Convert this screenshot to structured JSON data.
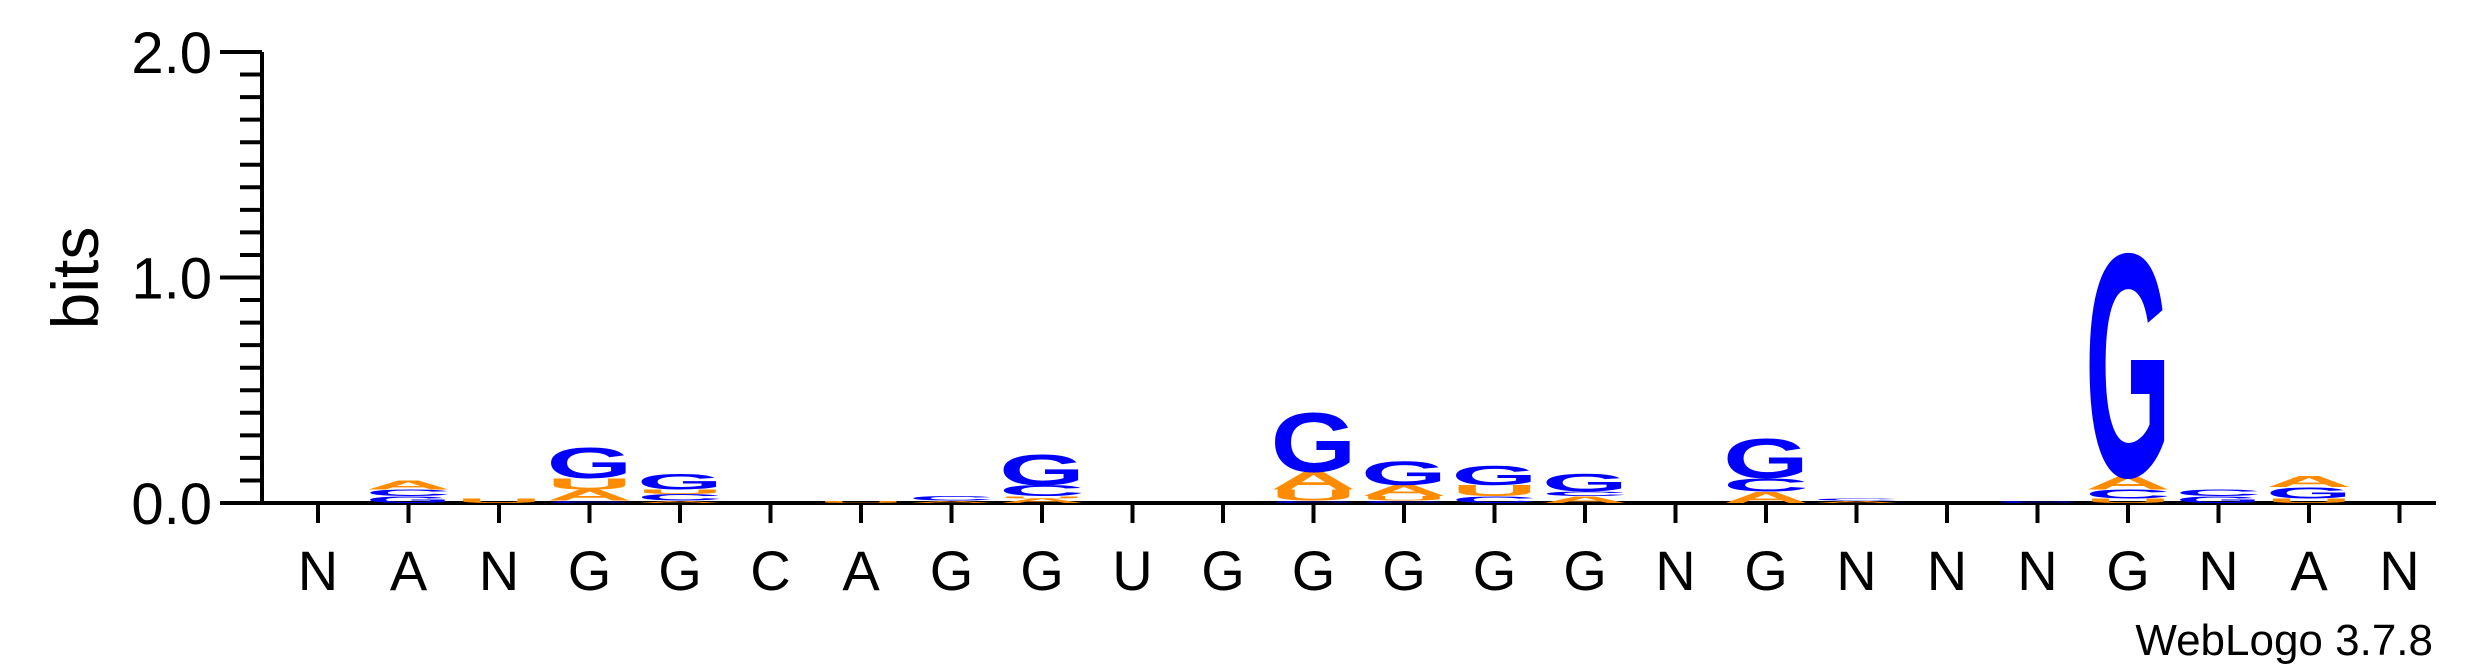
{
  "chart_data": {
    "type": "sequence-logo",
    "ylabel": "bits",
    "ylim": [
      0,
      2.0
    ],
    "yticks": [
      "0.0",
      "1.0",
      "2.0"
    ],
    "colors": {
      "A": "#ff8c00",
      "U": "#ff8c00",
      "G": "#0000ff",
      "C": "#0000ff"
    },
    "positions": [
      {
        "label": "N",
        "stack": []
      },
      {
        "label": "A",
        "stack": [
          {
            "letter": "G",
            "height": 0.03
          },
          {
            "letter": "C",
            "height": 0.03
          },
          {
            "letter": "A",
            "height": 0.04
          }
        ]
      },
      {
        "label": "N",
        "stack": [
          {
            "letter": "U",
            "height": 0.02
          }
        ]
      },
      {
        "label": "G",
        "stack": [
          {
            "letter": "C",
            "height": 0.01
          },
          {
            "letter": "A",
            "height": 0.05
          },
          {
            "letter": "U",
            "height": 0.05
          },
          {
            "letter": "G",
            "height": 0.14
          }
        ]
      },
      {
        "label": "G",
        "stack": [
          {
            "letter": "A",
            "height": 0.01
          },
          {
            "letter": "C",
            "height": 0.03
          },
          {
            "letter": "U",
            "height": 0.02
          },
          {
            "letter": "G",
            "height": 0.07
          }
        ]
      },
      {
        "label": "C",
        "stack": []
      },
      {
        "label": "A",
        "stack": [
          {
            "letter": "U",
            "height": 0.01
          }
        ]
      },
      {
        "label": "G",
        "stack": [
          {
            "letter": "A",
            "height": 0.01
          },
          {
            "letter": "C",
            "height": 0.02
          }
        ]
      },
      {
        "label": "G",
        "stack": [
          {
            "letter": "A",
            "height": 0.02
          },
          {
            "letter": "U",
            "height": 0.01
          },
          {
            "letter": "C",
            "height": 0.05
          },
          {
            "letter": "G",
            "height": 0.14
          }
        ]
      },
      {
        "label": "U",
        "stack": []
      },
      {
        "label": "G",
        "stack": []
      },
      {
        "label": "G",
        "stack": [
          {
            "letter": "C",
            "height": 0.01
          },
          {
            "letter": "U",
            "height": 0.05
          },
          {
            "letter": "A",
            "height": 0.08
          },
          {
            "letter": "G",
            "height": 0.27
          }
        ]
      },
      {
        "label": "G",
        "stack": [
          {
            "letter": "C",
            "height": 0.01
          },
          {
            "letter": "U",
            "height": 0.02
          },
          {
            "letter": "A",
            "height": 0.05
          },
          {
            "letter": "G",
            "height": 0.11
          }
        ]
      },
      {
        "label": "G",
        "stack": [
          {
            "letter": "C",
            "height": 0.03
          },
          {
            "letter": "U",
            "height": 0.05
          },
          {
            "letter": "G",
            "height": 0.09
          }
        ]
      },
      {
        "label": "G",
        "stack": [
          {
            "letter": "A",
            "height": 0.03
          },
          {
            "letter": "C",
            "height": 0.02
          },
          {
            "letter": "G",
            "height": 0.08
          }
        ]
      },
      {
        "label": "N",
        "stack": []
      },
      {
        "label": "G",
        "stack": [
          {
            "letter": "A",
            "height": 0.05
          },
          {
            "letter": "C",
            "height": 0.06
          },
          {
            "letter": "G",
            "height": 0.18
          }
        ]
      },
      {
        "label": "N",
        "stack": [
          {
            "letter": "A",
            "height": 0.01
          },
          {
            "letter": "C",
            "height": 0.01
          }
        ]
      },
      {
        "label": "N",
        "stack": []
      },
      {
        "label": "N",
        "stack": [
          {
            "letter": "C",
            "height": 0.01
          }
        ]
      },
      {
        "label": "G",
        "stack": [
          {
            "letter": "U",
            "height": 0.02
          },
          {
            "letter": "C",
            "height": 0.04
          },
          {
            "letter": "A",
            "height": 0.06
          },
          {
            "letter": "G",
            "height": 1.02
          }
        ]
      },
      {
        "label": "N",
        "stack": [
          {
            "letter": "G",
            "height": 0.03
          },
          {
            "letter": "C",
            "height": 0.03
          }
        ]
      },
      {
        "label": "A",
        "stack": [
          {
            "letter": "U",
            "height": 0.02
          },
          {
            "letter": "G",
            "height": 0.05
          },
          {
            "letter": "A",
            "height": 0.05
          }
        ]
      },
      {
        "label": "N",
        "stack": []
      }
    ]
  },
  "credit": "WebLogo 3.7.8"
}
